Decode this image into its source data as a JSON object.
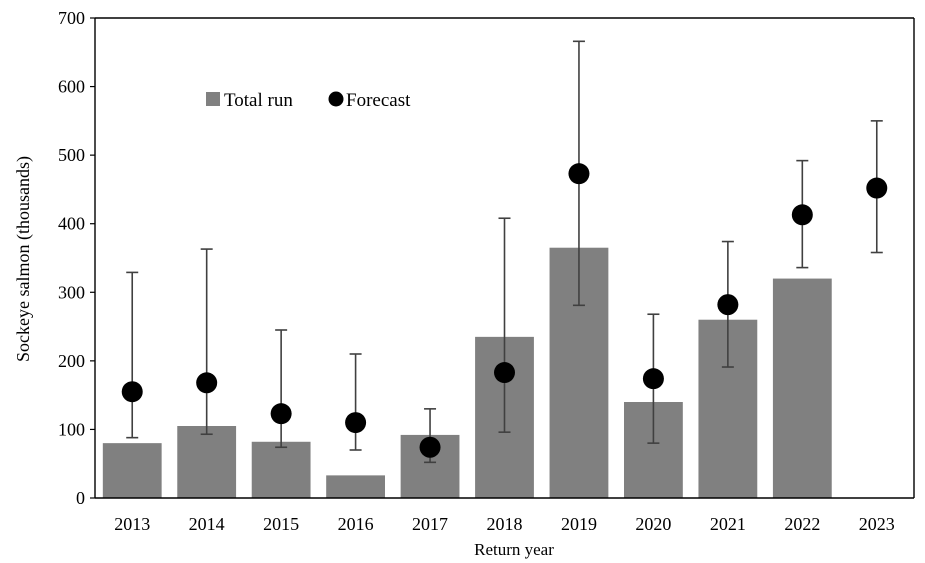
{
  "chart_data": {
    "type": "bar",
    "title": "",
    "xlabel": "Return year",
    "ylabel": "Sockeye salmon (thousands)",
    "ylim": [
      0,
      700
    ],
    "yticks": [
      0,
      100,
      200,
      300,
      400,
      500,
      600,
      700
    ],
    "grid": false,
    "legend_position": "top-left",
    "categories": [
      "2013",
      "2014",
      "2015",
      "2016",
      "2017",
      "2018",
      "2019",
      "2020",
      "2021",
      "2022",
      "2023"
    ],
    "series": [
      {
        "name": "Total run",
        "kind": "bar",
        "color": "#808080",
        "values": [
          80,
          105,
          82,
          33,
          92,
          235,
          365,
          140,
          260,
          320,
          null
        ]
      },
      {
        "name": "Forecast",
        "kind": "scatter",
        "color": "#000000",
        "values": [
          155,
          168,
          123,
          110,
          74,
          183,
          473,
          174,
          282,
          413,
          452
        ],
        "error_low": [
          88,
          93,
          74,
          70,
          52,
          96,
          281,
          80,
          191,
          336,
          358
        ],
        "error_high": [
          329,
          363,
          245,
          210,
          130,
          408,
          666,
          268,
          374,
          492,
          550
        ]
      }
    ]
  }
}
